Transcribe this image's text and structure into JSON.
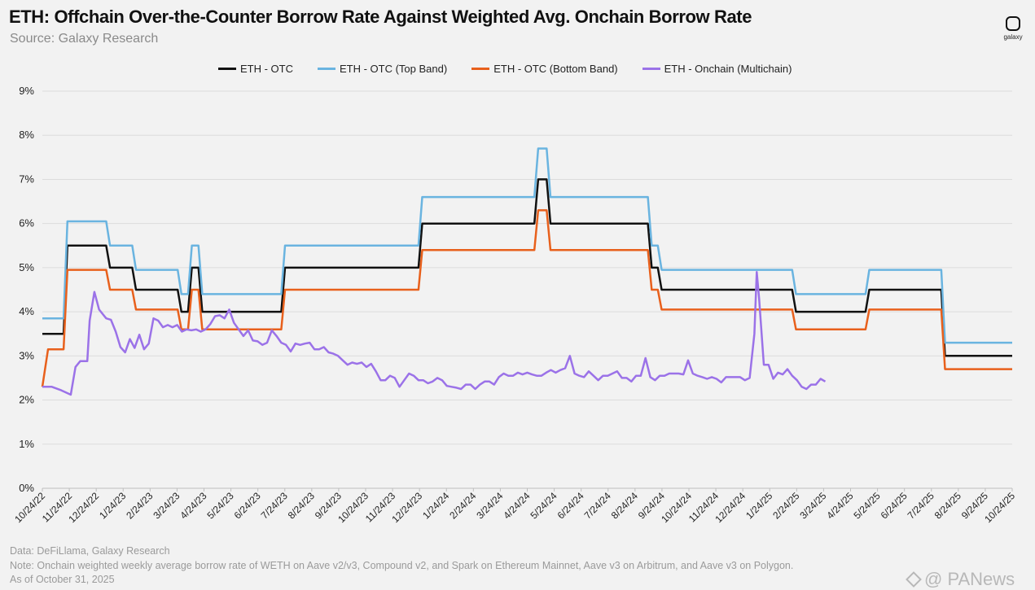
{
  "header": {
    "title": "ETH: Offchain Over-the-Counter Borrow Rate Against Weighted Avg. Onchain Borrow Rate",
    "subtitle": "Source: Galaxy Research",
    "logo_text": "galaxy"
  },
  "footer": {
    "line1": "Data: DeFiLlama, Galaxy Research",
    "line2": "Note: Onchain weighted weekly average borrow rate of WETH on Aave v2/v3, Compound v2, and Spark on Ethereum Mainnet, Aave v3 on Arbitrum, and Aave v3 on Polygon.",
    "line3": "As of October 31, 2025"
  },
  "watermark": {
    "text": "@ PANews"
  },
  "chart_data": {
    "type": "line",
    "x_unit": "weeks",
    "x_start": "10/24/22",
    "x_end": "10/24/25",
    "ylim": [
      0,
      9
    ],
    "yticks": [
      "0%",
      "1%",
      "2%",
      "3%",
      "4%",
      "5%",
      "6%",
      "7%",
      "8%",
      "9%"
    ],
    "xticks": [
      "10/24/22",
      "11/24/22",
      "12/24/22",
      "1/24/23",
      "2/24/23",
      "3/24/23",
      "4/24/23",
      "5/24/23",
      "6/24/23",
      "7/24/23",
      "8/24/23",
      "9/24/23",
      "10/24/23",
      "11/24/23",
      "12/24/23",
      "1/24/24",
      "2/24/24",
      "3/24/24",
      "4/24/24",
      "5/24/24",
      "6/24/24",
      "7/24/24",
      "8/24/24",
      "9/24/24",
      "10/24/24",
      "11/24/24",
      "12/24/24",
      "1/24/25",
      "2/24/25",
      "3/24/25",
      "4/24/25",
      "5/24/25",
      "6/24/25",
      "7/24/25",
      "8/24/25",
      "9/24/25",
      "10/24/25"
    ],
    "grid": "horizontal",
    "legend_position": "top",
    "series": [
      {
        "name": "ETH - OTC",
        "color": "#111111",
        "points": [
          [
            0,
            3.5
          ],
          [
            4.5,
            3.5
          ],
          [
            5.3,
            5.5
          ],
          [
            13.5,
            5.5
          ],
          [
            14.3,
            5
          ],
          [
            19,
            5
          ],
          [
            19.8,
            4.5
          ],
          [
            28.6,
            4.5
          ],
          [
            29.4,
            4
          ],
          [
            30.8,
            4
          ],
          [
            31.6,
            5
          ],
          [
            33,
            5
          ],
          [
            33.8,
            4
          ],
          [
            50.5,
            4
          ],
          [
            51.3,
            5
          ],
          [
            79.5,
            5
          ],
          [
            80.3,
            6
          ],
          [
            104,
            6
          ],
          [
            104.8,
            7
          ],
          [
            106.6,
            7
          ],
          [
            107.4,
            6
          ],
          [
            128,
            6
          ],
          [
            128.8,
            5
          ],
          [
            130.1,
            5
          ],
          [
            130.9,
            4.5
          ],
          [
            158.5,
            4.5
          ],
          [
            159.3,
            4
          ],
          [
            174,
            4
          ],
          [
            174.8,
            4.5
          ],
          [
            190,
            4.5
          ],
          [
            190.8,
            3
          ],
          [
            205,
            3
          ]
        ]
      },
      {
        "name": "ETH - OTC (Top Band)",
        "color": "#6ab4e0",
        "points": [
          [
            0,
            3.85
          ],
          [
            4.5,
            3.85
          ],
          [
            5.3,
            6.05
          ],
          [
            13.5,
            6.05
          ],
          [
            14.3,
            5.5
          ],
          [
            19,
            5.5
          ],
          [
            19.8,
            4.95
          ],
          [
            28.6,
            4.95
          ],
          [
            29.4,
            4.4
          ],
          [
            30.8,
            4.4
          ],
          [
            31.6,
            5.5
          ],
          [
            33,
            5.5
          ],
          [
            33.8,
            4.4
          ],
          [
            50.5,
            4.4
          ],
          [
            51.3,
            5.5
          ],
          [
            79.5,
            5.5
          ],
          [
            80.3,
            6.6
          ],
          [
            104,
            6.6
          ],
          [
            104.8,
            7.7
          ],
          [
            106.6,
            7.7
          ],
          [
            107.4,
            6.6
          ],
          [
            128,
            6.6
          ],
          [
            128.8,
            5.5
          ],
          [
            130.1,
            5.5
          ],
          [
            130.9,
            4.95
          ],
          [
            158.5,
            4.95
          ],
          [
            159.3,
            4.4
          ],
          [
            174,
            4.4
          ],
          [
            174.8,
            4.95
          ],
          [
            190,
            4.95
          ],
          [
            190.8,
            3.3
          ],
          [
            205,
            3.3
          ]
        ]
      },
      {
        "name": "ETH - OTC (Bottom Band)",
        "color": "#e8601c",
        "points": [
          [
            0,
            2.3
          ],
          [
            1.2,
            3.15
          ],
          [
            4.5,
            3.15
          ],
          [
            5.3,
            4.95
          ],
          [
            13.5,
            4.95
          ],
          [
            14.3,
            4.5
          ],
          [
            19,
            4.5
          ],
          [
            19.8,
            4.05
          ],
          [
            28.6,
            4.05
          ],
          [
            29.4,
            3.6
          ],
          [
            30.8,
            3.6
          ],
          [
            31.6,
            4.5
          ],
          [
            33,
            4.5
          ],
          [
            33.8,
            3.6
          ],
          [
            50.5,
            3.6
          ],
          [
            51.3,
            4.5
          ],
          [
            79.5,
            4.5
          ],
          [
            80.3,
            5.4
          ],
          [
            104,
            5.4
          ],
          [
            104.8,
            6.3
          ],
          [
            106.6,
            6.3
          ],
          [
            107.4,
            5.4
          ],
          [
            128,
            5.4
          ],
          [
            128.8,
            4.5
          ],
          [
            130.1,
            4.5
          ],
          [
            130.9,
            4.05
          ],
          [
            158.5,
            4.05
          ],
          [
            159.3,
            3.6
          ],
          [
            174,
            3.6
          ],
          [
            174.8,
            4.05
          ],
          [
            190,
            4.05
          ],
          [
            190.8,
            2.7
          ],
          [
            205,
            2.7
          ]
        ]
      },
      {
        "name": "ETH - Onchain (Multichain)",
        "color": "#9b72e8",
        "points": [
          [
            0,
            2.3
          ],
          [
            2,
            2.3
          ],
          [
            4,
            2.22
          ],
          [
            6,
            2.12
          ],
          [
            7,
            2.75
          ],
          [
            8,
            2.88
          ],
          [
            9.5,
            2.88
          ],
          [
            10,
            3.8
          ],
          [
            11,
            4.45
          ],
          [
            12,
            4.05
          ],
          [
            13.5,
            3.85
          ],
          [
            14.5,
            3.82
          ],
          [
            15.5,
            3.55
          ],
          [
            16.5,
            3.2
          ],
          [
            17.5,
            3.08
          ],
          [
            18.5,
            3.38
          ],
          [
            19.5,
            3.18
          ],
          [
            20.5,
            3.48
          ],
          [
            21.5,
            3.15
          ],
          [
            22.5,
            3.28
          ],
          [
            23.5,
            3.85
          ],
          [
            24.5,
            3.8
          ],
          [
            25.5,
            3.65
          ],
          [
            26.5,
            3.7
          ],
          [
            27.5,
            3.65
          ],
          [
            28.5,
            3.7
          ],
          [
            29.5,
            3.55
          ],
          [
            30.5,
            3.6
          ],
          [
            31.5,
            3.58
          ],
          [
            32.5,
            3.6
          ],
          [
            33.5,
            3.55
          ],
          [
            34.5,
            3.6
          ],
          [
            35.5,
            3.72
          ],
          [
            36.5,
            3.9
          ],
          [
            37.5,
            3.92
          ],
          [
            38.5,
            3.85
          ],
          [
            39.5,
            4.05
          ],
          [
            40.5,
            3.75
          ],
          [
            41.5,
            3.6
          ],
          [
            42.5,
            3.45
          ],
          [
            43.5,
            3.58
          ],
          [
            44.5,
            3.35
          ],
          [
            45.5,
            3.33
          ],
          [
            46.5,
            3.25
          ],
          [
            47.5,
            3.3
          ],
          [
            48.5,
            3.58
          ],
          [
            49.5,
            3.45
          ],
          [
            50.5,
            3.3
          ],
          [
            51.5,
            3.25
          ],
          [
            52.5,
            3.1
          ],
          [
            53.5,
            3.28
          ],
          [
            54.5,
            3.25
          ],
          [
            55.5,
            3.28
          ],
          [
            56.5,
            3.3
          ],
          [
            57.5,
            3.15
          ],
          [
            58.5,
            3.15
          ],
          [
            59.5,
            3.2
          ],
          [
            60.5,
            3.08
          ],
          [
            61.5,
            3.05
          ],
          [
            62.5,
            3.0
          ],
          [
            63.5,
            2.9
          ],
          [
            64.5,
            2.8
          ],
          [
            65.5,
            2.85
          ],
          [
            66.5,
            2.82
          ],
          [
            67.5,
            2.85
          ],
          [
            68.5,
            2.75
          ],
          [
            69.5,
            2.82
          ],
          [
            70.5,
            2.65
          ],
          [
            71.5,
            2.45
          ],
          [
            72.5,
            2.45
          ],
          [
            73.5,
            2.55
          ],
          [
            74.5,
            2.5
          ],
          [
            75.5,
            2.3
          ],
          [
            76.5,
            2.45
          ],
          [
            77.5,
            2.6
          ],
          [
            78.5,
            2.55
          ],
          [
            79.5,
            2.45
          ],
          [
            80.5,
            2.45
          ],
          [
            81.5,
            2.38
          ],
          [
            82.5,
            2.42
          ],
          [
            83.5,
            2.5
          ],
          [
            84.5,
            2.45
          ],
          [
            85.5,
            2.32
          ],
          [
            86.5,
            2.3
          ],
          [
            87.5,
            2.28
          ],
          [
            88.5,
            2.25
          ],
          [
            89.5,
            2.35
          ],
          [
            90.5,
            2.35
          ],
          [
            91.5,
            2.25
          ],
          [
            92.5,
            2.35
          ],
          [
            93.5,
            2.42
          ],
          [
            94.5,
            2.42
          ],
          [
            95.5,
            2.35
          ],
          [
            96.5,
            2.52
          ],
          [
            97.5,
            2.6
          ],
          [
            98.5,
            2.55
          ],
          [
            99.5,
            2.55
          ],
          [
            100.5,
            2.62
          ],
          [
            101.5,
            2.58
          ],
          [
            102.5,
            2.62
          ],
          [
            103.5,
            2.58
          ],
          [
            104.5,
            2.55
          ],
          [
            105.5,
            2.55
          ],
          [
            106.5,
            2.62
          ],
          [
            107.5,
            2.68
          ],
          [
            108.5,
            2.62
          ],
          [
            109.5,
            2.68
          ],
          [
            110.5,
            2.72
          ],
          [
            111.5,
            3.0
          ],
          [
            112.5,
            2.6
          ],
          [
            113.5,
            2.55
          ],
          [
            114.5,
            2.52
          ],
          [
            115.5,
            2.65
          ],
          [
            116.5,
            2.55
          ],
          [
            117.5,
            2.45
          ],
          [
            118.5,
            2.55
          ],
          [
            119.5,
            2.55
          ],
          [
            120.5,
            2.6
          ],
          [
            121.5,
            2.65
          ],
          [
            122.5,
            2.5
          ],
          [
            123.5,
            2.5
          ],
          [
            124.5,
            2.42
          ],
          [
            125.5,
            2.55
          ],
          [
            126.5,
            2.55
          ],
          [
            127.5,
            2.95
          ],
          [
            128.5,
            2.52
          ],
          [
            129.5,
            2.45
          ],
          [
            130.5,
            2.55
          ],
          [
            131.5,
            2.55
          ],
          [
            132.5,
            2.6
          ],
          [
            133.5,
            2.6
          ],
          [
            134.5,
            2.6
          ],
          [
            135.5,
            2.58
          ],
          [
            136.5,
            2.9
          ],
          [
            137.5,
            2.6
          ],
          [
            138.5,
            2.55
          ],
          [
            139.5,
            2.52
          ],
          [
            140.5,
            2.48
          ],
          [
            141.5,
            2.52
          ],
          [
            142.5,
            2.48
          ],
          [
            143.5,
            2.4
          ],
          [
            144.5,
            2.52
          ],
          [
            145.5,
            2.52
          ],
          [
            146.5,
            2.52
          ],
          [
            147.5,
            2.52
          ],
          [
            148.5,
            2.45
          ],
          [
            149.5,
            2.5
          ],
          [
            150.5,
            3.5
          ],
          [
            151,
            4.9
          ],
          [
            151.5,
            4.3
          ],
          [
            152.5,
            2.8
          ],
          [
            153.5,
            2.8
          ],
          [
            154.5,
            2.48
          ],
          [
            155.5,
            2.62
          ],
          [
            156.5,
            2.58
          ],
          [
            157.5,
            2.7
          ],
          [
            158.5,
            2.55
          ],
          [
            159.5,
            2.45
          ],
          [
            160.5,
            2.3
          ],
          [
            161.5,
            2.25
          ],
          [
            162.5,
            2.35
          ],
          [
            163.5,
            2.35
          ],
          [
            164.5,
            2.48
          ],
          [
            165.5,
            2.42
          ]
        ]
      }
    ]
  }
}
